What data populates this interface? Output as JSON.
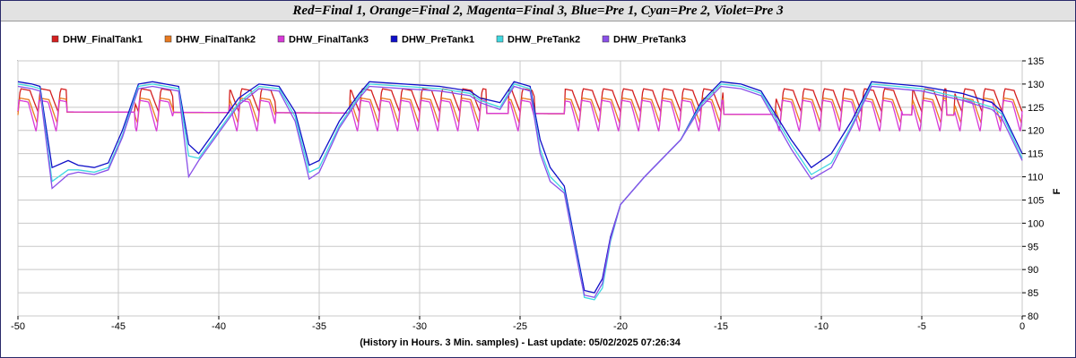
{
  "chart_data": {
    "type": "line",
    "title": "Red=Final 1, Orange=Final 2, Magenta=Final 3, Blue=Pre 1, Cyan=Pre 2, Violet=Pre 3",
    "xlabel": "(History in Hours. 3 Min. samples) - Last update: 05/02/2025 07:26:34",
    "ylabel": "F",
    "xlim": [
      -50,
      0
    ],
    "ylim": [
      80,
      135
    ],
    "x_ticks": [
      "-50",
      "-45",
      "-40",
      "-35",
      "-30",
      "-25",
      "-20",
      "-15",
      "-10",
      "-5",
      "0"
    ],
    "y_ticks": [
      "80",
      "85",
      "90",
      "95",
      "100",
      "105",
      "110",
      "115",
      "120",
      "125",
      "130",
      "135"
    ],
    "grid": true,
    "legend": "top",
    "series": [
      {
        "name": "DHW_FinalTank1",
        "color": "#d42020",
        "final_idle": [
          124.5,
          124,
          123.8,
          123.5,
          123,
          122.5,
          123.5,
          123,
          123.3,
          123.3,
          122.5,
          123,
          123.5,
          123.3,
          123
        ],
        "peak": 129,
        "trough": 124
      },
      {
        "name": "DHW_FinalTank2",
        "color": "#e87a20",
        "peak": 127,
        "trough": 121.5
      },
      {
        "name": "DHW_FinalTank3",
        "color": "#d83ad8",
        "peak": 126.5,
        "trough": 119.5
      },
      {
        "name": "DHW_PreTank1",
        "color": "#1010c8",
        "x": [
          -50,
          -49.3,
          -48.9,
          -48.3,
          -47.5,
          -47,
          -46.2,
          -45.5,
          -44.8,
          -44,
          -43.3,
          -42,
          -41.5,
          -41,
          -40,
          -39,
          -38,
          -37,
          -36.2,
          -35.5,
          -35,
          -34,
          -33,
          -32.5,
          -29,
          -27.5,
          -27,
          -26,
          -25.3,
          -24.5,
          -24,
          -23.5,
          -22.8,
          -22,
          -21.8,
          -21.3,
          -20.9,
          -20.5,
          -20,
          -18.8,
          -17,
          -16,
          -15,
          -14,
          -13,
          -11.5,
          -10.5,
          -9.5,
          -8.5,
          -7.5,
          -5,
          -3,
          -1.5,
          -1,
          0
        ],
        "values": [
          130.5,
          130,
          129.5,
          112,
          113.5,
          112.5,
          112,
          113,
          120,
          130,
          130.5,
          129.5,
          117,
          115,
          121,
          127,
          130,
          129.5,
          124,
          112.5,
          113.5,
          122,
          128,
          130.5,
          129.5,
          128.5,
          127,
          126,
          130.5,
          129.5,
          118,
          112,
          108,
          90,
          85.5,
          85,
          88,
          97,
          104,
          110,
          118,
          126,
          130.5,
          130,
          128.5,
          118,
          112,
          115,
          122,
          130.5,
          129.5,
          128,
          126,
          124,
          115
        ]
      },
      {
        "name": "DHW_PreTank2",
        "color": "#40d8e0",
        "x": [
          -50,
          -49.3,
          -48.9,
          -48.3,
          -47.5,
          -47,
          -46.2,
          -45.5,
          -44.8,
          -44,
          -43.3,
          -42,
          -41.5,
          -41,
          -40,
          -39,
          -38,
          -37,
          -36.2,
          -35.5,
          -35,
          -34,
          -33,
          -32.5,
          -29,
          -27.5,
          -27,
          -26,
          -25.3,
          -24.5,
          -24,
          -23.5,
          -22.8,
          -22,
          -21.8,
          -21.3,
          -20.9,
          -20.5,
          -20,
          -18.8,
          -17,
          -16,
          -15,
          -14,
          -13,
          -11.5,
          -10.5,
          -9.5,
          -8.5,
          -7.5,
          -5,
          -3,
          -1.5,
          -1,
          0
        ],
        "values": [
          130,
          129.5,
          129,
          109,
          111.5,
          111.5,
          111,
          112,
          119,
          129.5,
          130,
          129,
          114.5,
          114,
          120,
          126,
          129.5,
          129,
          123,
          111,
          112,
          121,
          127.5,
          130,
          129,
          128,
          126.5,
          125,
          130,
          129,
          116,
          110,
          107,
          89,
          84,
          83.5,
          86,
          96,
          104,
          110,
          118,
          125.5,
          130,
          129.5,
          128,
          117,
          110.5,
          113,
          121,
          130,
          129,
          127,
          125,
          123.5,
          114
        ]
      },
      {
        "name": "DHW_PreTank3",
        "color": "#8a50e8",
        "x": [
          -50,
          -49.3,
          -48.9,
          -48.3,
          -47.5,
          -47,
          -46.2,
          -45.5,
          -44.8,
          -44,
          -43.3,
          -42,
          -41.5,
          -41,
          -40,
          -39,
          -38,
          -37,
          -36.2,
          -35.5,
          -35,
          -34,
          -33,
          -32.5,
          -29,
          -27.5,
          -27,
          -26,
          -25.3,
          -24.5,
          -24,
          -23.5,
          -22.8,
          -22,
          -21.8,
          -21.3,
          -20.9,
          -20.5,
          -20,
          -18.8,
          -17,
          -16,
          -15,
          -14,
          -13,
          -11.5,
          -10.5,
          -9.5,
          -8.5,
          -7.5,
          -5,
          -3,
          -1.5,
          -1,
          0
        ],
        "values": [
          129.5,
          129,
          128.5,
          107.5,
          110.5,
          111,
          110.5,
          111.5,
          118.5,
          129,
          129.5,
          128.5,
          110,
          113.5,
          119.5,
          125.5,
          129,
          128.5,
          122,
          109.5,
          111,
          120.5,
          127,
          129.5,
          128.5,
          127.5,
          126,
          124.5,
          129.5,
          128.5,
          115,
          109,
          106.5,
          88.5,
          84.5,
          84,
          87,
          96.5,
          104,
          110,
          118,
          125,
          129.5,
          129,
          127.5,
          116,
          109.5,
          112,
          120.5,
          129.5,
          128.5,
          126.5,
          124.5,
          122.5,
          113.5
        ]
      }
    ]
  }
}
